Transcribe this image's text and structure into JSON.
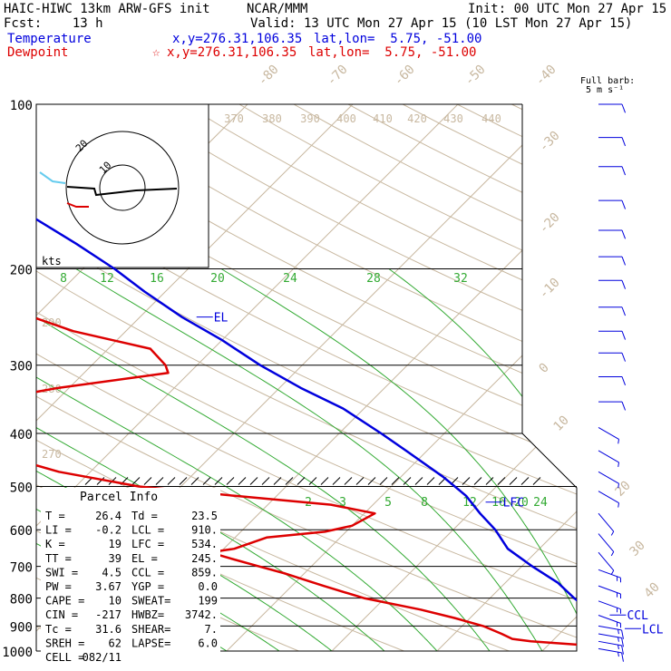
{
  "header": {
    "title": "HAIC-HIWC 13km ARW-GFS init",
    "org": "NCAR/MMM",
    "init": "Init: 00 UTC Mon 27 Apr 15",
    "fcst": "Fcst:    13 h",
    "valid": "Valid: 13 UTC Mon 27 Apr 15 (10 LST Mon 27 Apr 15)",
    "temp_label": "Temperature",
    "temp_xy": "x,y=276.31,106.35",
    "temp_latlon": "lat,lon=  5.75, -51.00",
    "dew_label": "Dewpoint",
    "dew_star": "☆",
    "dew_xy": "x,y=276.31,106.35",
    "dew_latlon": "lat,lon=  5.75, -51.00",
    "barb_title_1": "Full barb:",
    "barb_title_2": "5 m s⁻¹",
    "colors": {
      "temperature": "#0000dd",
      "dewpoint": "#dd0000"
    }
  },
  "chart_data": {
    "type": "line",
    "chart_kind": "skew-T log-p sounding",
    "y_axis": "pressure (hPa), log scale",
    "ylim": [
      1000,
      100
    ],
    "pressure_levels": [
      "100",
      "200",
      "300",
      "400",
      "500",
      "600",
      "700",
      "800",
      "900",
      "1000"
    ],
    "isotherm_labels": [
      "-80",
      "-70",
      "-60",
      "-50",
      "-40",
      "-30",
      "-20",
      "-10",
      "0",
      "10",
      "20",
      "30",
      "40"
    ],
    "theta_labels": [
      "370",
      "380",
      "390",
      "400",
      "410",
      "420",
      "430",
      "440"
    ],
    "theta_e_labels": [
      "290",
      "280",
      "270"
    ],
    "mixing_ratio_labels_upper": [
      "8",
      "12",
      "16",
      "20",
      "24",
      "28",
      "32"
    ],
    "mixing_ratio_labels_lower": [
      "2",
      "3",
      "5",
      "8",
      "12",
      "16",
      "20",
      "24"
    ],
    "series": [
      {
        "name": "Temperature",
        "color": "#0000dd",
        "p": [
          1000,
          985,
          960,
          935,
          905,
          880,
          850,
          800,
          750,
          700,
          650,
          600,
          560,
          520,
          480,
          430,
          400,
          360,
          330,
          300,
          270,
          245,
          220,
          200,
          180,
          160,
          140,
          120,
          110,
          100
        ],
        "t": [
          27.0,
          26.0,
          26.0,
          25.0,
          24.2,
          23.0,
          21.0,
          18.0,
          15.0,
          11.0,
          7.0,
          4.0,
          1.0,
          -2.0,
          -6.0,
          -12.0,
          -16.0,
          -22.0,
          -28.0,
          -34.0,
          -40.0,
          -46.0,
          -52.0,
          -57.0,
          -63.0,
          -70.0,
          -76.0,
          -82.0,
          -85.0,
          -87.0
        ]
      },
      {
        "name": "Dewpoint",
        "color": "#dd0000",
        "p": [
          1000,
          975,
          960,
          950,
          930,
          900,
          870,
          840,
          800,
          760,
          720,
          700,
          680,
          660,
          650,
          620,
          605,
          590,
          560,
          540,
          520,
          500,
          470,
          430,
          400,
          370,
          350,
          330,
          310,
          300,
          280,
          260,
          240,
          220,
          200,
          180,
          160,
          140,
          120,
          110,
          100
        ],
        "td": [
          23.6,
          23.3,
          18.0,
          16.0,
          14.5,
          12.0,
          8.5,
          4.5,
          -2.0,
          -7.0,
          -12.0,
          -15.0,
          -18.0,
          -21.0,
          -19.0,
          -17.0,
          -12.0,
          -10.0,
          -9.0,
          -14.0,
          -24.0,
          -34.0,
          -43.0,
          -52.0,
          -58.0,
          -60.0,
          -57.0,
          -51.0,
          -42.0,
          -43.0,
          -46.0,
          -55.0,
          -62.0,
          -69.0,
          -75.0,
          -79.0,
          -86.0,
          -91.0,
          -96.0,
          -99.0,
          -101.0
        ]
      }
    ],
    "annotations": [
      {
        "label": "EL",
        "p": 245
      },
      {
        "label": "LFC",
        "p": 534
      },
      {
        "label": "CCL",
        "p": 859
      },
      {
        "label": "LCL",
        "p": 910
      }
    ],
    "wind_barbs": {
      "p": [
        100,
        115,
        130,
        150,
        170,
        190,
        210,
        235,
        260,
        285,
        315,
        350,
        390,
        430,
        470,
        510,
        560,
        610,
        660,
        710,
        760,
        810,
        860,
        900,
        930,
        960,
        990
      ],
      "speed_ms": [
        5,
        5,
        5,
        5,
        5,
        5,
        5,
        5,
        5,
        5,
        5,
        5,
        3,
        3,
        3,
        3,
        2,
        2,
        2,
        4,
        4,
        4,
        4,
        8,
        8,
        8,
        8
      ],
      "dir_deg": [
        90,
        90,
        90,
        90,
        90,
        90,
        90,
        90,
        90,
        90,
        90,
        90,
        120,
        120,
        120,
        120,
        140,
        140,
        140,
        110,
        110,
        110,
        110,
        100,
        100,
        100,
        100
      ]
    },
    "hodograph": {
      "units": "kts",
      "ring_labels": [
        "20",
        "10"
      ]
    }
  },
  "parcel_info": {
    "title": "Parcel Info",
    "rows": [
      {
        "l": "T  =",
        "lv": " 26.4",
        "r": "Td =",
        "rv": " 23.5"
      },
      {
        "l": "LI =",
        "lv": " -0.2",
        "r": "LCL =",
        "rv": " 910."
      },
      {
        "l": "K  =",
        "lv": "   19",
        "r": "LFC =",
        "rv": " 534."
      },
      {
        "l": "TT =",
        "lv": "   39",
        "r": "EL  =",
        "rv": " 245."
      },
      {
        "l": "SWI =",
        "lv": "  4.5",
        "r": "CCL =",
        "rv": " 859."
      },
      {
        "l": "PW =",
        "lv": " 3.67",
        "r": "YGP =",
        "rv": "  0.0"
      },
      {
        "l": "CAPE =",
        "lv": "   10",
        "r": "SWEAT=",
        "rv": "  199"
      },
      {
        "l": "CIN =",
        "lv": " -217",
        "r": "HWBZ=",
        "rv": " 3742."
      },
      {
        "l": "Tc =",
        "lv": " 31.6",
        "r": "SHEAR=",
        "rv": "   7."
      },
      {
        "l": "SREH =",
        "lv": "   62",
        "r": "LAPSE=",
        "rv": "  6.0"
      },
      {
        "l": "CELL =",
        "lv": " 082/11",
        "r": "",
        "rv": ""
      }
    ]
  }
}
